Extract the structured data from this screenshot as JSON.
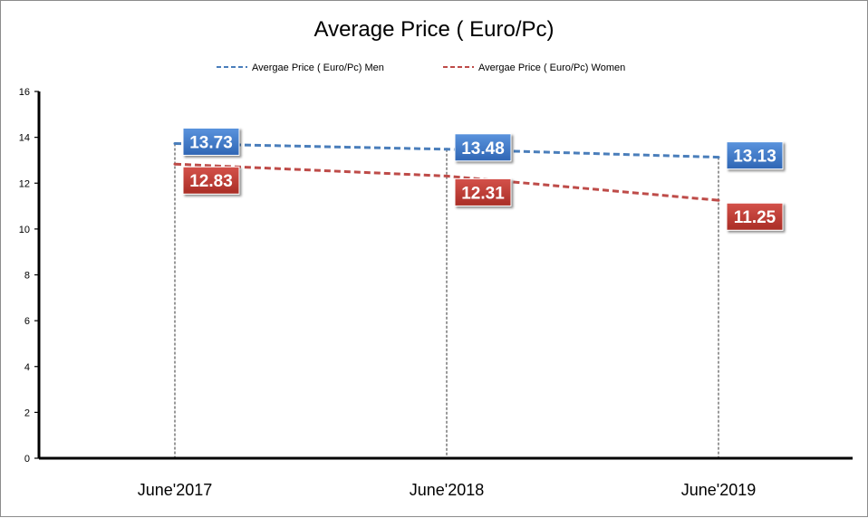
{
  "chart_data": {
    "type": "line",
    "title": "Average Price ( Euro/Pc)",
    "categories": [
      "June'2017",
      "June'2018",
      "June'2019"
    ],
    "ylim": [
      0,
      16
    ],
    "yticks": [
      0,
      2,
      4,
      6,
      8,
      10,
      12,
      14,
      16
    ],
    "grid": false,
    "drop_lines": true,
    "legend_position": "top",
    "series": [
      {
        "name": "Avergae Price ( Euro/Pc) Men",
        "values": [
          13.73,
          13.48,
          13.13
        ],
        "labels": [
          "13.73",
          "13.48",
          "13.13"
        ],
        "color": "#4a7ebb",
        "label_fill": "#3a76c9",
        "line_style": "dashed"
      },
      {
        "name": "Avergae Price ( Euro/Pc) Women",
        "values": [
          12.83,
          12.31,
          11.25
        ],
        "labels": [
          "12.83",
          "12.31",
          "11.25"
        ],
        "color": "#be4b48",
        "label_fill": "#c0392f",
        "line_style": "dashed"
      }
    ]
  }
}
